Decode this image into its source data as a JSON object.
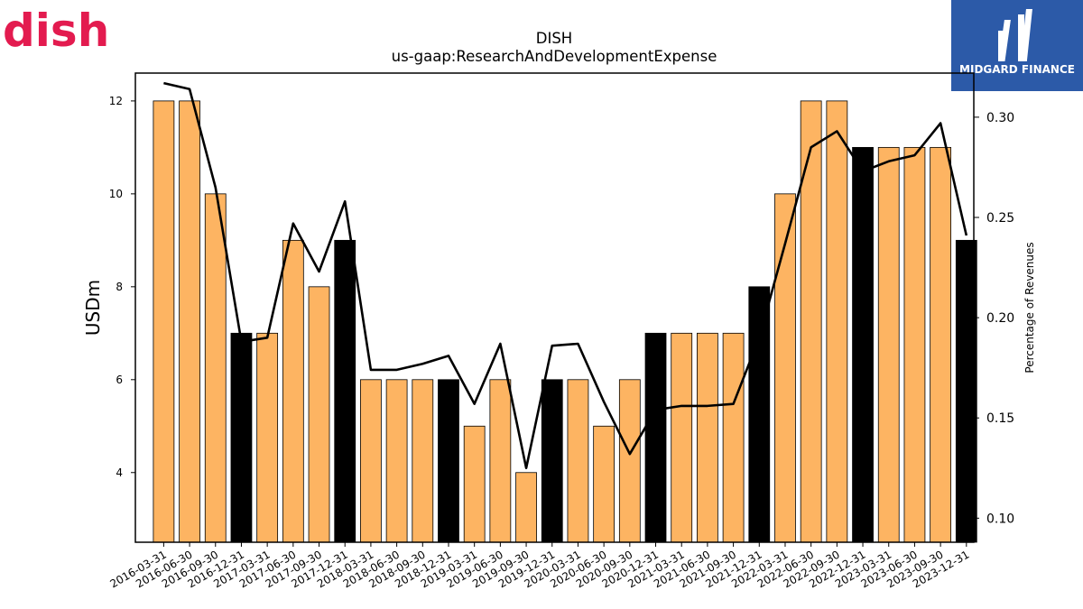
{
  "logos": {
    "left": {
      "text": "dish",
      "color": "#e31b4f"
    },
    "right": {
      "text": "MIDGARD FINANCE",
      "color": "#2c5aa8"
    }
  },
  "chart_data": {
    "type": "bar",
    "title": "DISH",
    "subtitle": "us-gaap:ResearchAndDevelopmentExpense",
    "ylabel": "USDm",
    "y2label": "Percentage of Revenues",
    "ylim": [
      2.5,
      12.6
    ],
    "y2lim": [
      0.088,
      0.322
    ],
    "yticks": [
      "4",
      "6",
      "8",
      "10",
      "12"
    ],
    "y2ticks": [
      "0.10",
      "0.15",
      "0.20",
      "0.25",
      "0.30"
    ],
    "bar_color_default": "#fdb462",
    "bar_color_highlight": "#000000",
    "categories": [
      "2016-03-31",
      "2016-06-30",
      "2016-09-30",
      "2016-12-31",
      "2017-03-31",
      "2017-06-30",
      "2017-09-30",
      "2017-12-31",
      "2018-03-31",
      "2018-06-30",
      "2018-09-30",
      "2018-12-31",
      "2019-03-31",
      "2019-06-30",
      "2019-09-30",
      "2019-12-31",
      "2020-03-31",
      "2020-06-30",
      "2020-09-30",
      "2020-12-31",
      "2021-03-31",
      "2021-06-30",
      "2021-09-30",
      "2021-12-31",
      "2022-03-31",
      "2022-06-30",
      "2022-09-30",
      "2022-12-31",
      "2023-03-31",
      "2023-06-30",
      "2023-09-30",
      "2023-12-31"
    ],
    "values": [
      12,
      12,
      10,
      7,
      7,
      9,
      8,
      9,
      6,
      6,
      6,
      6,
      5,
      6,
      4,
      6,
      6,
      5,
      6,
      7,
      7,
      7,
      7,
      8,
      10,
      12,
      12,
      11,
      11,
      11,
      11,
      9
    ],
    "highlight": [
      false,
      false,
      false,
      true,
      false,
      false,
      false,
      true,
      false,
      false,
      false,
      true,
      false,
      false,
      false,
      true,
      false,
      false,
      false,
      true,
      false,
      false,
      false,
      true,
      false,
      false,
      false,
      true,
      false,
      false,
      false,
      true
    ],
    "series": [
      {
        "values": [
          0.317,
          0.314,
          0.265,
          0.188,
          0.19,
          0.247,
          0.223,
          0.258,
          0.174,
          0.174,
          0.177,
          0.181,
          0.157,
          0.187,
          0.125,
          0.186,
          0.187,
          0.158,
          0.132,
          0.154,
          0.156,
          0.156,
          0.157,
          0.19,
          0.237,
          0.285,
          0.293,
          0.273,
          0.278,
          0.281,
          0.297,
          0.241
        ]
      }
    ]
  }
}
